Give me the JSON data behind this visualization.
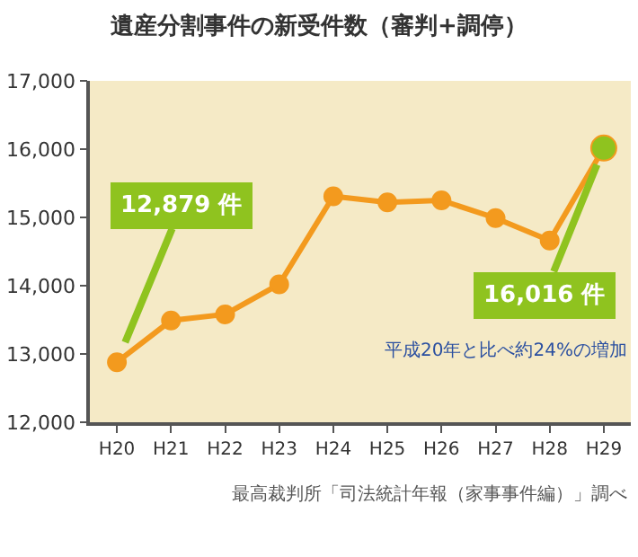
{
  "chart_data": {
    "type": "line",
    "title": "遺産分割事件の新受件数（審判+調停）",
    "categories": [
      "H20",
      "H21",
      "H22",
      "H23",
      "H24",
      "H25",
      "H26",
      "H27",
      "H28",
      "H29"
    ],
    "series": [
      {
        "color": "#f39a1e",
        "colors": [
          "#f39a1e",
          "#f39a1e",
          "#f39a1e",
          "#f39a1e",
          "#f39a1e",
          "#f39a1e",
          "#f39a1e",
          "#f39a1e",
          "#f39a1e",
          "#8fc31f"
        ],
        "values": [
          12879,
          13490,
          13580,
          14020,
          15310,
          15220,
          15250,
          14990,
          14660,
          16016
        ]
      }
    ],
    "ylim": [
      12000,
      17000
    ],
    "yticks": [
      {
        "value": 12000,
        "label": "12,000"
      },
      {
        "value": 13000,
        "label": "13,000"
      },
      {
        "value": 14000,
        "label": "14,000"
      },
      {
        "value": 15000,
        "label": "15,000"
      },
      {
        "value": 16000,
        "label": "16,000"
      },
      {
        "value": 17000,
        "label": "17,000"
      }
    ],
    "marker": "circle",
    "line_style": "solid",
    "grid": false,
    "annotations": [
      {
        "text": "12,879 件",
        "x": "H20",
        "y": 12879
      },
      {
        "text": "16,016 件",
        "x": "H29",
        "y": 16016
      },
      "平成20年と比べ約24%の増加",
      "最高裁判所「司法統計年報（家事事件編）」調べ"
    ]
  }
}
